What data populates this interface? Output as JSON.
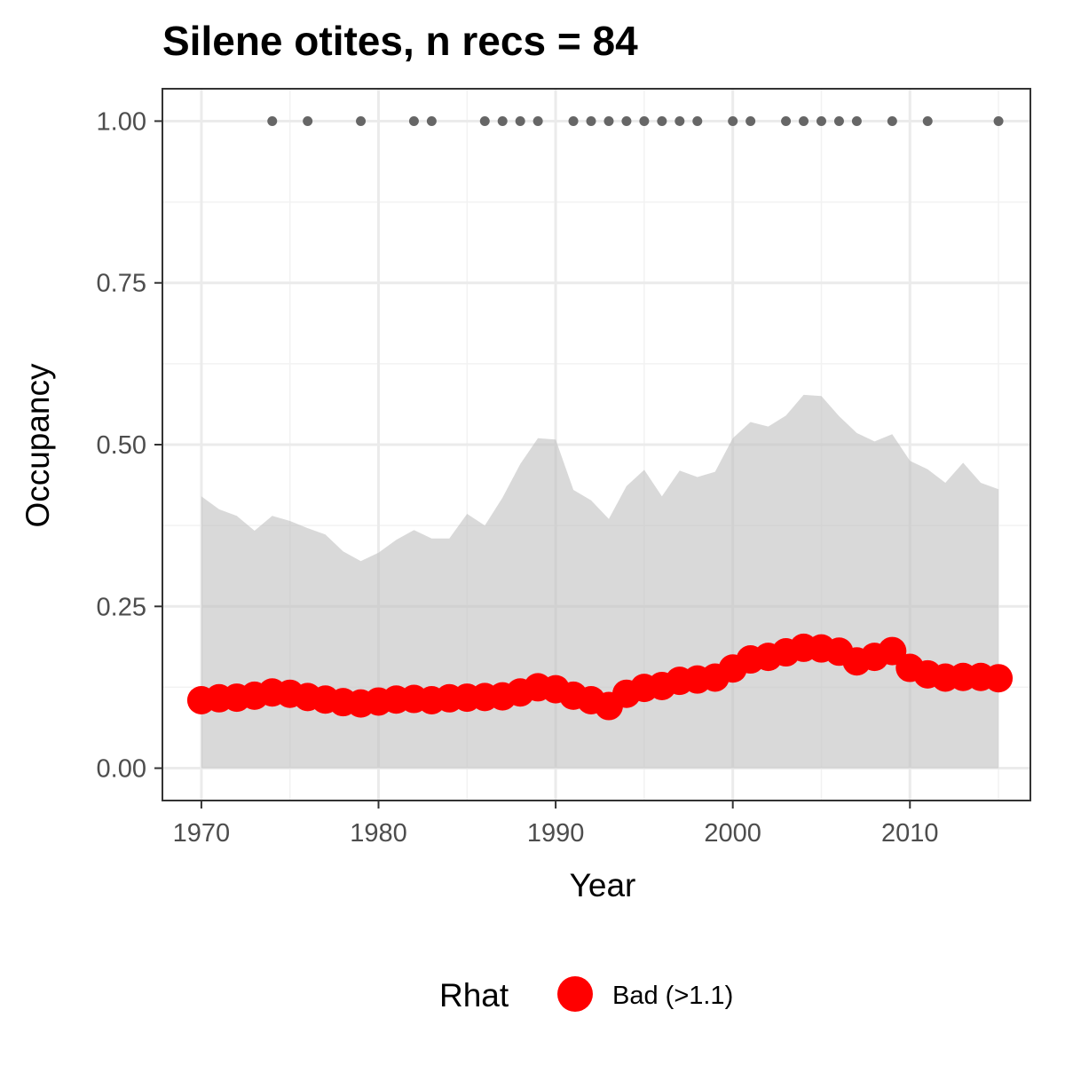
{
  "chart_data": {
    "type": "line",
    "title": "Silene otites, n recs = 84",
    "xlabel": "Year",
    "ylabel": "Occupancy",
    "xlim": [
      1967.8,
      2016.8
    ],
    "ylim": [
      -0.05,
      1.05
    ],
    "x_ticks": [
      "1970",
      "1980",
      "1990",
      "2000",
      "2010"
    ],
    "x_tick_values": [
      1970,
      1980,
      1990,
      2000,
      2010
    ],
    "y_ticks": [
      "0.00",
      "0.25",
      "0.50",
      "0.75",
      "1.00"
    ],
    "y_tick_values": [
      0,
      0.25,
      0.5,
      0.75,
      1.0
    ],
    "grid": true,
    "series": [
      {
        "name": "",
        "kind": "line-points",
        "color": "#ff0000",
        "x": [
          1970,
          1971,
          1972,
          1973,
          1974,
          1975,
          1976,
          1977,
          1978,
          1979,
          1980,
          1981,
          1982,
          1983,
          1984,
          1985,
          1986,
          1987,
          1988,
          1989,
          1990,
          1991,
          1992,
          1993,
          1994,
          1995,
          1996,
          1997,
          1998,
          1999,
          2000,
          2001,
          2002,
          2003,
          2004,
          2005,
          2006,
          2007,
          2008,
          2009,
          2010,
          2011,
          2012,
          2013,
          2014,
          2015
        ],
        "y": [
          0.105,
          0.108,
          0.109,
          0.112,
          0.117,
          0.115,
          0.11,
          0.106,
          0.102,
          0.1,
          0.103,
          0.106,
          0.107,
          0.105,
          0.108,
          0.109,
          0.11,
          0.111,
          0.117,
          0.125,
          0.122,
          0.112,
          0.105,
          0.096,
          0.115,
          0.124,
          0.127,
          0.135,
          0.137,
          0.14,
          0.154,
          0.168,
          0.172,
          0.179,
          0.186,
          0.185,
          0.18,
          0.165,
          0.172,
          0.181,
          0.155,
          0.145,
          0.14,
          0.141,
          0.141,
          0.139
        ]
      },
      {
        "name": "",
        "kind": "interval",
        "color": "#d9d9d9",
        "x": [
          1970,
          1971,
          1972,
          1973,
          1974,
          1975,
          1976,
          1977,
          1978,
          1979,
          1980,
          1981,
          1982,
          1983,
          1984,
          1985,
          1986,
          1987,
          1988,
          1989,
          1990,
          1991,
          1992,
          1993,
          1994,
          1995,
          1996,
          1997,
          1998,
          1999,
          2000,
          2001,
          2002,
          2003,
          2004,
          2005,
          2006,
          2007,
          2008,
          2009,
          2010,
          2011,
          2012,
          2013,
          2014,
          2015
        ],
        "lower": [
          0,
          0,
          0,
          0,
          0,
          0,
          0,
          0,
          0,
          0,
          0,
          0,
          0,
          0,
          0,
          0,
          0,
          0,
          0,
          0,
          0,
          0,
          0,
          0,
          0,
          0,
          0,
          0,
          0,
          0,
          0,
          0,
          0,
          0,
          0,
          0,
          0,
          0,
          0,
          0,
          0,
          0,
          0,
          0,
          0,
          0
        ],
        "upper": [
          0.42,
          0.4,
          0.39,
          0.367,
          0.39,
          0.382,
          0.371,
          0.361,
          0.335,
          0.32,
          0.333,
          0.353,
          0.368,
          0.355,
          0.355,
          0.393,
          0.375,
          0.418,
          0.47,
          0.51,
          0.508,
          0.43,
          0.414,
          0.385,
          0.436,
          0.461,
          0.42,
          0.46,
          0.45,
          0.458,
          0.51,
          0.535,
          0.528,
          0.545,
          0.577,
          0.575,
          0.544,
          0.518,
          0.505,
          0.516,
          0.475,
          0.462,
          0.441,
          0.472,
          0.441,
          0.431
        ]
      },
      {
        "name": "",
        "kind": "points",
        "color": "#666666",
        "x": [
          1974,
          1976,
          1979,
          1982,
          1983,
          1986,
          1987,
          1988,
          1989,
          1991,
          1992,
          1993,
          1994,
          1995,
          1996,
          1997,
          1998,
          2000,
          2001,
          2003,
          2004,
          2005,
          2006,
          2007,
          2009,
          2011,
          2015
        ],
        "y": [
          1,
          1,
          1,
          1,
          1,
          1,
          1,
          1,
          1,
          1,
          1,
          1,
          1,
          1,
          1,
          1,
          1,
          1,
          1,
          1,
          1,
          1,
          1,
          1,
          1,
          1,
          1
        ]
      }
    ],
    "legend": {
      "position": "bottom",
      "title": "Rhat",
      "entries": [
        {
          "label": "Bad (>1.1)",
          "color": "#ff0000"
        }
      ]
    }
  }
}
